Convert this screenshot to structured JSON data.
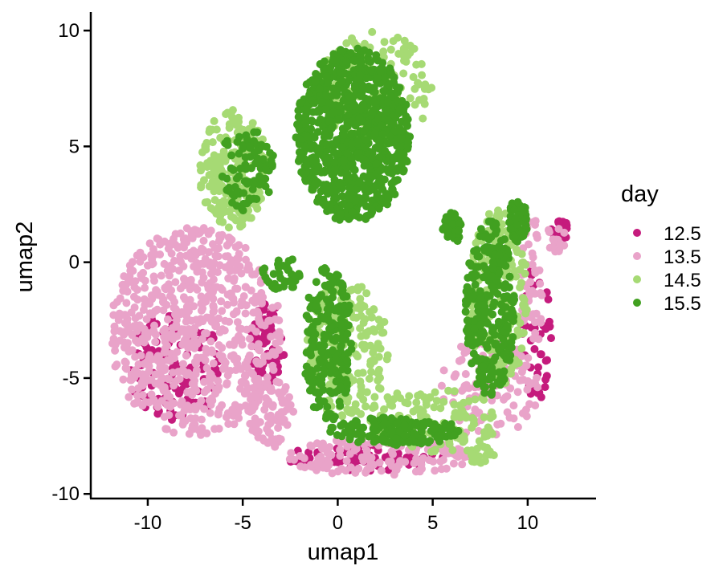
{
  "chart_data": {
    "type": "scatter",
    "title": "",
    "xlabel": "umap1",
    "ylabel": "umap2",
    "xlim": [
      -13,
      13.6
    ],
    "ylim": [
      -10.2,
      10.8
    ],
    "xticks": [
      -10,
      -5,
      0,
      5,
      10
    ],
    "yticks": [
      -10,
      -5,
      0,
      5,
      10
    ],
    "xtick_labels": [
      "-10",
      "-5",
      "0",
      "5",
      "10"
    ],
    "ytick_labels": [
      "-10",
      "-5",
      "0",
      "5",
      "10"
    ],
    "legend": {
      "title": "day",
      "placement": "right",
      "entries": [
        {
          "label": "12.5",
          "color": "#C51B7D"
        },
        {
          "label": "13.5",
          "color": "#E9A3C9"
        },
        {
          "label": "14.5",
          "color": "#A6DA74"
        },
        {
          "label": "15.5",
          "color": "#41A020"
        }
      ]
    },
    "series": [
      {
        "name": "12.5",
        "color": "#C51B7D",
        "regions": [
          {
            "cx": -8.5,
            "cy": -4.5,
            "rx": 2.5,
            "ry": 2.5,
            "n": 120
          },
          {
            "cx": -3.7,
            "cy": -3.5,
            "rx": 1.0,
            "ry": 1.8,
            "n": 60
          },
          {
            "cx": 1.5,
            "cy": -8.4,
            "rx": 4.5,
            "ry": 0.6,
            "n": 70
          },
          {
            "cx": 10.5,
            "cy": -3.0,
            "rx": 0.8,
            "ry": 3.0,
            "n": 40
          },
          {
            "cx": 11.7,
            "cy": 1.3,
            "rx": 0.5,
            "ry": 0.6,
            "n": 25
          }
        ]
      },
      {
        "name": "13.5",
        "color": "#E9A3C9",
        "regions": [
          {
            "cx": -7.5,
            "cy": -3.0,
            "rx": 4.5,
            "ry": 4.5,
            "n": 700
          },
          {
            "cx": -3.5,
            "cy": -6.5,
            "rx": 1.2,
            "ry": 1.5,
            "n": 80
          },
          {
            "cx": 2.0,
            "cy": -8.4,
            "rx": 5.0,
            "ry": 0.8,
            "n": 140
          },
          {
            "cx": 8.0,
            "cy": -5.5,
            "rx": 2.6,
            "ry": 2.3,
            "n": 120
          },
          {
            "cx": 10.2,
            "cy": -1.0,
            "rx": 0.6,
            "ry": 3.0,
            "n": 50
          },
          {
            "cx": 11.5,
            "cy": 1.0,
            "rx": 0.6,
            "ry": 0.6,
            "n": 20
          }
        ]
      },
      {
        "name": "14.5",
        "color": "#A6DA74",
        "regions": [
          {
            "cx": -5.5,
            "cy": 4.0,
            "rx": 1.8,
            "ry": 2.6,
            "n": 220
          },
          {
            "cx": 2.0,
            "cy": 7.5,
            "rx": 3.0,
            "ry": 2.5,
            "n": 160
          },
          {
            "cx": 0.5,
            "cy": -3.8,
            "rx": 2.2,
            "ry": 3.0,
            "n": 180
          },
          {
            "cx": 5.0,
            "cy": -6.8,
            "rx": 3.5,
            "ry": 1.4,
            "n": 130
          },
          {
            "cx": 8.5,
            "cy": -1.5,
            "rx": 1.6,
            "ry": 3.8,
            "n": 200
          },
          {
            "cx": 7.5,
            "cy": -8.3,
            "rx": 0.8,
            "ry": 0.4,
            "n": 25
          }
        ]
      },
      {
        "name": "15.5",
        "color": "#41A020",
        "regions": [
          {
            "cx": 0.8,
            "cy": 5.5,
            "rx": 3.0,
            "ry": 3.8,
            "n": 900
          },
          {
            "cx": -4.8,
            "cy": 4.0,
            "rx": 1.5,
            "ry": 1.8,
            "n": 90
          },
          {
            "cx": -0.5,
            "cy": -3.5,
            "rx": 1.3,
            "ry": 3.4,
            "n": 220
          },
          {
            "cx": 3.0,
            "cy": -7.3,
            "rx": 3.5,
            "ry": 0.6,
            "n": 160
          },
          {
            "cx": 8.0,
            "cy": -2.0,
            "rx": 1.3,
            "ry": 3.8,
            "n": 280
          },
          {
            "cx": 9.5,
            "cy": 1.8,
            "rx": 0.5,
            "ry": 1.0,
            "n": 60
          },
          {
            "cx": 6.0,
            "cy": 1.5,
            "rx": 0.5,
            "ry": 0.8,
            "n": 40
          },
          {
            "cx": -3.0,
            "cy": -0.5,
            "rx": 1.0,
            "ry": 0.8,
            "n": 40
          }
        ]
      }
    ]
  }
}
